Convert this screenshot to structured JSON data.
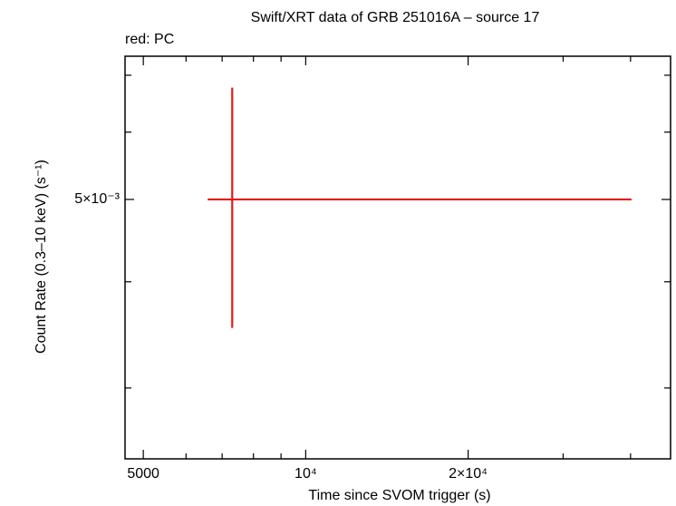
{
  "chart_data": {
    "type": "errorbar",
    "title": "Swift/XRT data of GRB 251016A – source 17",
    "annotation": "red: PC",
    "x_label": "Time since SVOM trigger (s)",
    "y_label": "Count Rate (0.3–10 keV) (s⁻¹)",
    "x_log": true,
    "y_log": true,
    "xlim": [
      4625,
      47450
    ],
    "ylim": [
      0.002476,
      0.00737
    ],
    "xticks": [
      {
        "value": 5000,
        "label": "5000"
      },
      {
        "value": 6000,
        "label": null
      },
      {
        "value": 7000,
        "label": null
      },
      {
        "value": 8000,
        "label": null
      },
      {
        "value": 9000,
        "label": null
      },
      {
        "value": 10000,
        "label": "10⁴"
      },
      {
        "value": 20000,
        "label": "2×10⁴"
      },
      {
        "value": 30000,
        "label": null
      },
      {
        "value": 40000,
        "label": null
      }
    ],
    "yticks": [
      {
        "value": 0.003,
        "label": null
      },
      {
        "value": 0.004,
        "label": null
      },
      {
        "value": 0.005,
        "label": "5×10⁻³"
      },
      {
        "value": 0.006,
        "label": null
      },
      {
        "value": 0.007,
        "label": null
      }
    ],
    "series": [
      {
        "color": "#e8191a",
        "x": [
          7307
        ],
        "xerr_minus": [
          727
        ],
        "xerr_plus": [
          32853
        ],
        "values": [
          0.005
        ],
        "yerr_minus": [
          0.00147
        ],
        "yerr_plus": [
          0.00177
        ]
      }
    ]
  }
}
